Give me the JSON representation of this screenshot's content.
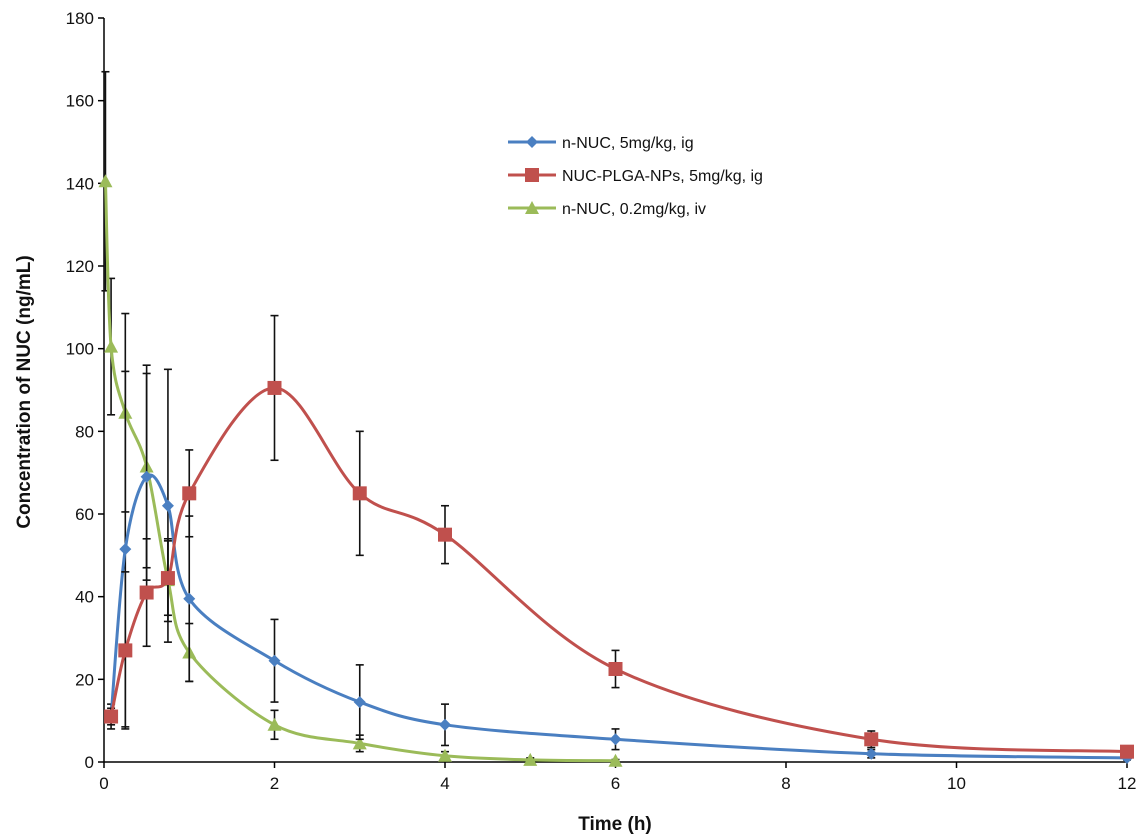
{
  "chart_data": {
    "type": "line",
    "xlabel": "Time (h)",
    "ylabel": "Concentration of NUC (ng/mL)",
    "xlim": [
      0,
      12
    ],
    "ylim": [
      0,
      180
    ],
    "xticks": [
      0,
      2,
      4,
      6,
      8,
      10,
      12
    ],
    "yticks": [
      0,
      20,
      40,
      60,
      80,
      100,
      120,
      140,
      160,
      180
    ],
    "grid": false,
    "smooth": true,
    "legend_position": "upper-center-right",
    "series": [
      {
        "name": "n-NUC, 5mg/kg, ig",
        "color": "#4a7fc1",
        "marker": "diamond",
        "x": [
          0.083,
          0.25,
          0.5,
          0.75,
          1,
          2,
          3,
          4,
          6,
          9,
          12
        ],
        "y": [
          11,
          51.5,
          69,
          62,
          39.5,
          24.5,
          14.5,
          9,
          5.5,
          2,
          1
        ],
        "error": [
          3,
          43,
          25,
          33,
          20,
          10,
          9,
          5,
          2.5,
          1,
          0.5
        ]
      },
      {
        "name": "NUC-PLGA-NPs, 5mg/kg, ig",
        "color": "#c0504d",
        "marker": "square",
        "x": [
          0.083,
          0.25,
          0.5,
          0.75,
          1,
          2,
          3,
          4,
          6,
          9,
          12
        ],
        "y": [
          11,
          27,
          41,
          44.5,
          65,
          90.5,
          65,
          55,
          22.5,
          5.5,
          2.5
        ],
        "error": [
          2,
          19,
          13,
          9,
          10.5,
          17.5,
          15,
          7,
          4.5,
          2,
          0.5
        ]
      },
      {
        "name": "n-NUC, 0.2mg/kg, iv",
        "color": "#9bbb59",
        "marker": "triangle",
        "x": [
          0.017,
          0.083,
          0.25,
          0.5,
          0.75,
          1,
          2,
          3,
          4,
          5,
          6
        ],
        "y": [
          140.5,
          100.5,
          84.5,
          71.5,
          44,
          26.5,
          9,
          4.5,
          1.5,
          0.5,
          0.3
        ],
        "error": [
          26.5,
          16.5,
          24,
          24.5,
          10,
          7,
          3.5,
          2,
          1,
          0.5,
          0.3
        ]
      }
    ]
  }
}
